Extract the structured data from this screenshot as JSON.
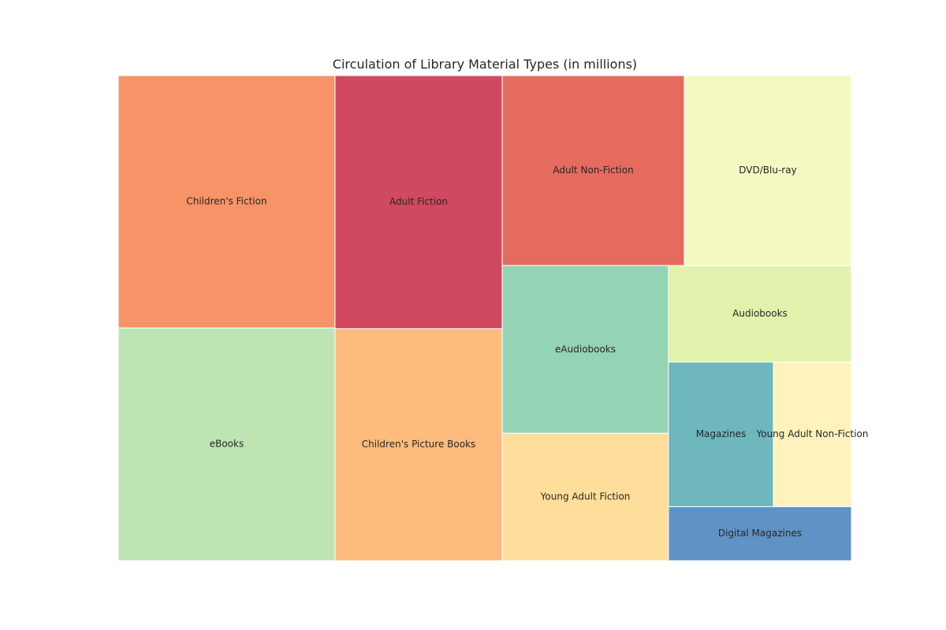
{
  "chart_data": {
    "type": "treemap",
    "title": "Circulation of Library Material Types (in millions)",
    "units": "millions",
    "items": [
      {
        "label": "Adult Fiction",
        "value": 120,
        "color": "#d0495f"
      },
      {
        "label": "Adult Non-Fiction",
        "value": 98,
        "color": "#e66b5f"
      },
      {
        "label": "Children's Fiction",
        "value": 155,
        "color": "#f69467"
      },
      {
        "label": "Children's Picture Books",
        "value": 110,
        "color": "#fdbb7e"
      },
      {
        "label": "Young Adult Fiction",
        "value": 60,
        "color": "#fede9a"
      },
      {
        "label": "Young Adult Non-Fiction",
        "value": 32,
        "color": "#fff2bd"
      },
      {
        "label": "DVD/Blu-ray",
        "value": 90,
        "color": "#f4f9c2"
      },
      {
        "label": "Audiobooks",
        "value": 50,
        "color": "#e1f2ad"
      },
      {
        "label": "eBooks",
        "value": 143,
        "color": "#bee4b3"
      },
      {
        "label": "eAudiobooks",
        "value": 79,
        "color": "#94d4b5"
      },
      {
        "label": "Magazines",
        "value": 43,
        "color": "#6eb7bd"
      },
      {
        "label": "Digital Magazines",
        "value": 28,
        "color": "#5f93c5"
      }
    ]
  }
}
